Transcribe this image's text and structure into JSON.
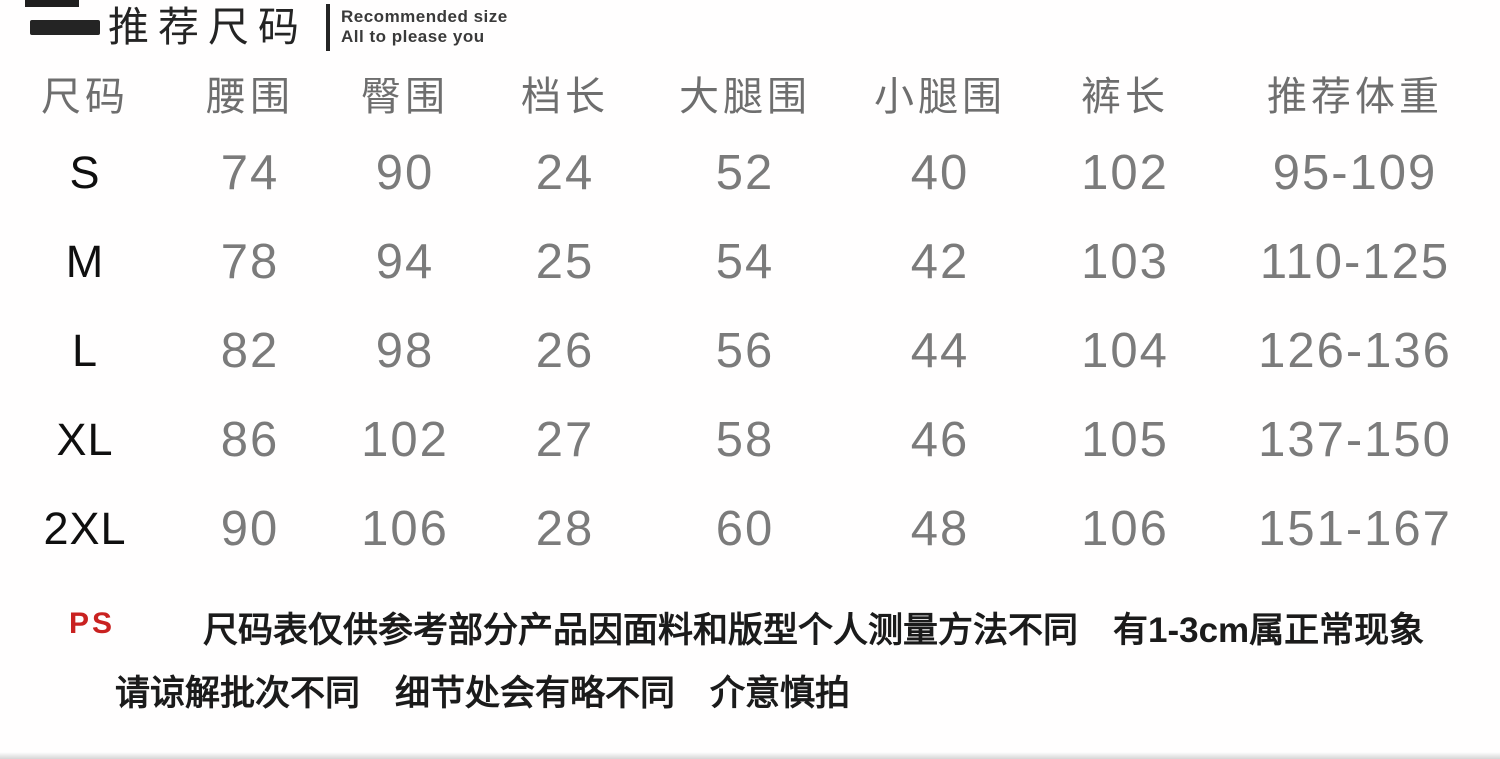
{
  "header": {
    "title": "推荐尺码",
    "tagline_line1": "Recommended size",
    "tagline_line2": "All to please you"
  },
  "chart_data": {
    "type": "table",
    "title": "推荐尺码 (Recommended size)",
    "columns": [
      "尺码",
      "腰围",
      "臀围",
      "档长",
      "大腿围",
      "小腿围",
      "裤长",
      "推荐体重"
    ],
    "rows": [
      [
        "S",
        "74",
        "90",
        "24",
        "52",
        "40",
        "102",
        "95-109"
      ],
      [
        "M",
        "78",
        "94",
        "25",
        "54",
        "42",
        "103",
        "110-125"
      ],
      [
        "L",
        "82",
        "98",
        "26",
        "56",
        "44",
        "104",
        "126-136"
      ],
      [
        "XL",
        "86",
        "102",
        "27",
        "58",
        "46",
        "105",
        "137-150"
      ],
      [
        "2XL",
        "90",
        "106",
        "28",
        "60",
        "48",
        "106",
        "151-167"
      ]
    ]
  },
  "notes": {
    "label": "PS",
    "line1": "尺码表仅供参考部分产品因面料和版型个人测量方法不同　有1-3cm属正常现象",
    "line2": "请谅解批次不同　细节处会有略不同　介意慎拍"
  },
  "colors": {
    "accent_red": "#c92120",
    "title_black": "#242424",
    "header_gray": "#6e6e6e",
    "value_gray": "#7b7b7b",
    "note_black": "#1b1b1b",
    "background": "#ffffff"
  }
}
